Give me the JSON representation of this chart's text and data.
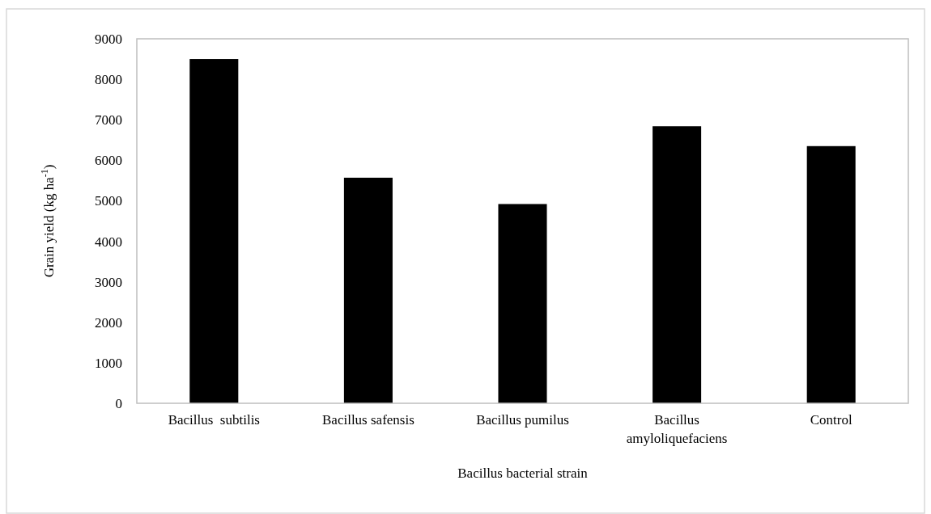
{
  "chart_data": {
    "type": "bar",
    "xlabel": "Bacillus bacterial strain",
    "ylabel": "Grain yield (kg ha$^{-1}$)",
    "categories": [
      "Bacillus  subtilis",
      "Bacillus safensis",
      "Bacillus pumilus",
      "Bacillus amyloliquefaciens",
      "Control"
    ],
    "values": [
      8500,
      5570,
      4920,
      6840,
      6350
    ],
    "color": "#000000",
    "ylim": [
      0,
      9000
    ],
    "yticks": [
      0,
      1000,
      2000,
      3000,
      4000,
      5000,
      6000,
      7000,
      8000,
      9000
    ],
    "grid": false
  }
}
